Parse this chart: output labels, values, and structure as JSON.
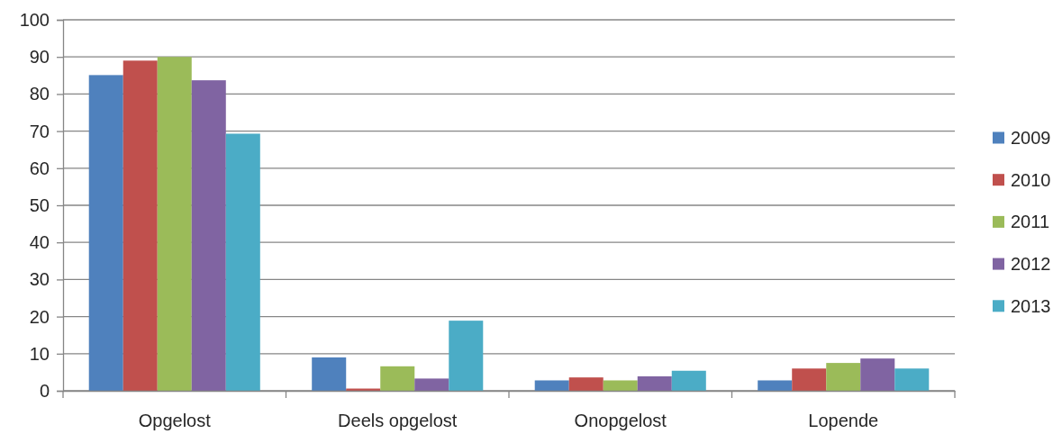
{
  "chart_data": {
    "type": "bar",
    "categories": [
      "Opgelost",
      "Deels opgelost",
      "Onopgelost",
      "Lopende"
    ],
    "series": [
      {
        "name": "2009",
        "color": "#4f81bd",
        "values": [
          85.1,
          9.0,
          2.8,
          2.8
        ]
      },
      {
        "name": "2010",
        "color": "#c0504d",
        "values": [
          89.0,
          0.6,
          3.6,
          6.0
        ]
      },
      {
        "name": "2011",
        "color": "#9bbb59",
        "values": [
          90.0,
          6.6,
          2.8,
          7.5
        ]
      },
      {
        "name": "2012",
        "color": "#8064a2",
        "values": [
          83.7,
          3.3,
          3.9,
          8.7
        ]
      },
      {
        "name": "2013",
        "color": "#4bacc6",
        "values": [
          69.3,
          18.9,
          5.4,
          6.0
        ]
      }
    ],
    "ylim": [
      0,
      100
    ],
    "yticks": [
      0,
      10,
      20,
      30,
      40,
      50,
      60,
      70,
      80,
      90,
      100
    ],
    "grid": "y",
    "legend": "right"
  }
}
